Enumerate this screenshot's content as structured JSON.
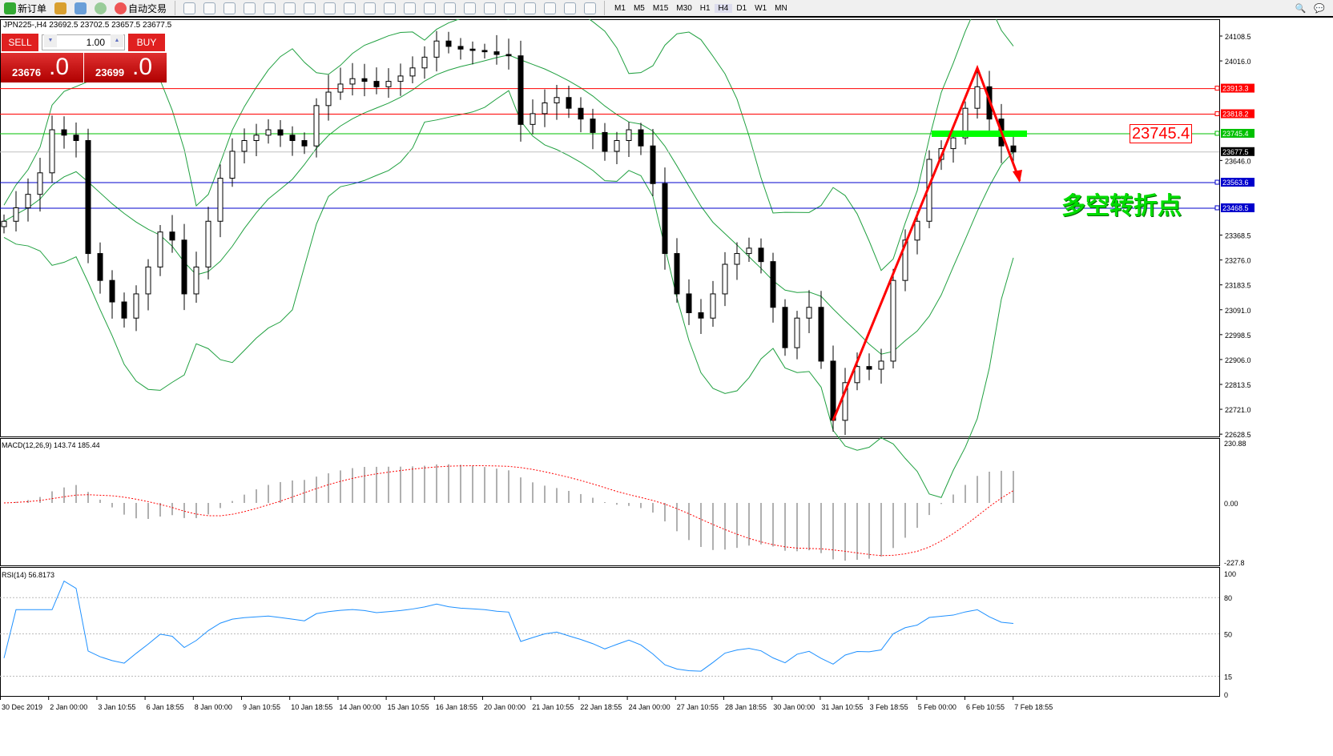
{
  "toolbar": {
    "new_order": "新订单",
    "auto_trading": "自动交易",
    "icons": [
      "chart-bars-icon",
      "candles-icon",
      "line-chart-icon",
      "zoom-in-icon",
      "zoom-out-icon",
      "tile-windows-icon",
      "autoscroll-icon",
      "chart-shift-icon",
      "indicators-icon",
      "periods-icon",
      "templates-icon",
      "cursor-icon",
      "crosshair-icon",
      "vertical-line-icon",
      "horizontal-line-icon",
      "trendline-icon",
      "fibonacci-icon",
      "fib-fan-icon",
      "text-icon",
      "text-label-icon",
      "arrows-icon"
    ],
    "timeframes": [
      "M1",
      "M5",
      "M15",
      "M30",
      "H1",
      "H4",
      "D1",
      "W1",
      "MN"
    ],
    "search_icon": "search-icon",
    "chat_icon": "chat-icon"
  },
  "chart": {
    "info": "JPN225-,H4  23692.5 23702.5 23657.5 23677.5",
    "sell_label": "SELL",
    "buy_label": "BUY",
    "lot": "1.00",
    "sell_price_main": "23676",
    "sell_price_big": ".0",
    "buy_price_main": "23699",
    "buy_price_big": ".0",
    "annotation": "多空转折点",
    "level_box": "23745.4",
    "colors": {
      "red_line": "#ff0000",
      "green_line": "#00c000",
      "blue_line": "#0000cc",
      "bands": "#20a040",
      "macd_signal": "#ff0000",
      "macd_hist": "#b0b0b0",
      "rsi": "#1e90ff"
    }
  },
  "chart_data": [
    {
      "type": "candlestick",
      "title": "JPN225-,H4",
      "ylim": [
        22628.5,
        24150
      ],
      "yticks": [
        "24108.5",
        "24016.0",
        "23646.0",
        "23368.5",
        "23276.0",
        "23183.5",
        "23091.0",
        "22998.5",
        "22906.0",
        "22813.5",
        "22721.0",
        "22628.5"
      ],
      "ytick_values": [
        24108.5,
        24016.0,
        23646.0,
        23368.5,
        23276.0,
        23183.5,
        23091.0,
        22998.5,
        22906.0,
        22813.5,
        22721.0,
        22628.5
      ],
      "closes": [
        23420,
        23470,
        23520,
        23600,
        23760,
        23740,
        23720,
        23300,
        23200,
        23120,
        23060,
        23150,
        23250,
        23380,
        23350,
        23150,
        23250,
        23420,
        23580,
        23680,
        23720,
        23740,
        23760,
        23740,
        23720,
        23700,
        23850,
        23900,
        23930,
        23950,
        23940,
        23920,
        23940,
        23960,
        23990,
        24030,
        24090,
        24070,
        24060,
        24055,
        24050,
        24040,
        24035,
        23780,
        23820,
        23860,
        23880,
        23840,
        23800,
        23750,
        23680,
        23720,
        23760,
        23700,
        23560,
        23300,
        23150,
        23080,
        23060,
        23150,
        23260,
        23300,
        23320,
        23270,
        23100,
        22950,
        23060,
        23100,
        22900,
        22680,
        22820,
        22880,
        22870,
        22900,
        23200,
        23350,
        23420,
        23650,
        23690,
        23730,
        23840,
        23920,
        23800,
        23700,
        23677.5
      ],
      "levels": [
        {
          "value": 23913.3,
          "label": "23913.3",
          "color": "red"
        },
        {
          "value": 23818.2,
          "label": "23818.2",
          "color": "red"
        },
        {
          "value": 23745.4,
          "label": "23745.4",
          "color": "green"
        },
        {
          "value": 23677.5,
          "label": "23677.5",
          "color": "current"
        },
        {
          "value": 23563.6,
          "label": "23563.6",
          "color": "blue"
        },
        {
          "value": 23468.5,
          "label": "23468.5",
          "color": "blue"
        }
      ],
      "indicator": "Bollinger Bands"
    },
    {
      "type": "macd",
      "title": "MACD(12,26,9) 143.74 185.44",
      "ylim": [
        -227.8,
        230.88
      ],
      "yticks": [
        "230.88",
        "0.00",
        "-227.8"
      ]
    },
    {
      "type": "line",
      "title": "RSI(14) 56.8173",
      "ylim": [
        0,
        100
      ],
      "yticks": [
        "100",
        "80",
        "50",
        "15",
        "0"
      ],
      "levels": [
        80,
        50,
        15
      ]
    }
  ],
  "xaxis": [
    "30 Dec 2019",
    "2 Jan 00:00",
    "3 Jan 10:55",
    "6 Jan 18:55",
    "8 Jan 00:00",
    "9 Jan 10:55",
    "10 Jan 18:55",
    "14 Jan 00:00",
    "15 Jan 10:55",
    "16 Jan 18:55",
    "20 Jan 00:00",
    "21 Jan 10:55",
    "22 Jan 18:55",
    "24 Jan 00:00",
    "27 Jan 10:55",
    "28 Jan 18:55",
    "30 Jan 00:00",
    "31 Jan 10:55",
    "3 Feb 18:55",
    "5 Feb 00:00",
    "6 Feb 10:55",
    "7 Feb 18:55"
  ]
}
